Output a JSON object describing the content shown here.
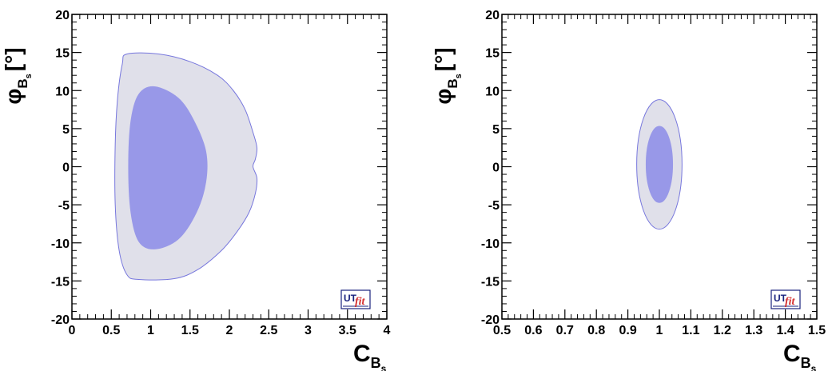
{
  "chart_data": [
    {
      "type": "contour",
      "xlabel": {
        "main": "C",
        "sub": "B",
        "subsub": "s"
      },
      "ylabel": {
        "main": "φ",
        "sub": "B",
        "subsub": "s",
        "unit": "[°]"
      },
      "xlim": [
        0,
        4
      ],
      "ylim": [
        -20,
        20
      ],
      "xticks": [
        0,
        0.5,
        1,
        1.5,
        2,
        2.5,
        3,
        3.5,
        4
      ],
      "xtick_labels": [
        "0",
        "0.5",
        "1",
        "1.5",
        "2",
        "2.5",
        "3",
        "3.5",
        "4"
      ],
      "yticks": [
        -20,
        -15,
        -10,
        -5,
        0,
        5,
        10,
        15,
        20
      ],
      "ytick_labels": [
        "-20",
        "-15",
        "-10",
        "-5",
        "0",
        "5",
        "10",
        "15",
        "20"
      ],
      "contours": [
        {
          "level": "outer",
          "fill": "#e0e0ea",
          "stroke": "#7777dd",
          "points": [
            [
              0.7,
              14.8
            ],
            [
              1.1,
              14.8
            ],
            [
              1.5,
              13.8
            ],
            [
              1.85,
              12.0
            ],
            [
              2.05,
              10.0
            ],
            [
              2.2,
              7.5
            ],
            [
              2.3,
              4.5
            ],
            [
              2.35,
              2.5
            ],
            [
              2.33,
              1.0
            ],
            [
              2.3,
              0.0
            ],
            [
              2.35,
              -1.5
            ],
            [
              2.33,
              -3.5
            ],
            [
              2.25,
              -6.0
            ],
            [
              2.1,
              -8.5
            ],
            [
              1.9,
              -11.0
            ],
            [
              1.6,
              -13.5
            ],
            [
              1.3,
              -14.7
            ],
            [
              0.85,
              -14.8
            ],
            [
              0.7,
              -14.2
            ],
            [
              0.6,
              -11.0
            ],
            [
              0.55,
              -5.0
            ],
            [
              0.55,
              3.0
            ],
            [
              0.58,
              9.0
            ],
            [
              0.64,
              13.5
            ]
          ]
        },
        {
          "level": "inner",
          "fill": "#9898e8",
          "stroke": "#9898e8",
          "points": [
            [
              1.05,
              10.5
            ],
            [
              1.35,
              9.0
            ],
            [
              1.55,
              6.0
            ],
            [
              1.7,
              2.0
            ],
            [
              1.7,
              -2.0
            ],
            [
              1.58,
              -6.0
            ],
            [
              1.35,
              -9.5
            ],
            [
              1.05,
              -10.8
            ],
            [
              0.85,
              -9.8
            ],
            [
              0.75,
              -6.0
            ],
            [
              0.72,
              0.0
            ],
            [
              0.75,
              6.0
            ],
            [
              0.85,
              9.5
            ]
          ]
        }
      ],
      "logo": {
        "ut": "UT",
        "fit": "fit"
      }
    },
    {
      "type": "contour",
      "xlabel": {
        "main": "C",
        "sub": "B",
        "subsub": "s"
      },
      "ylabel": {
        "main": "φ",
        "sub": "B",
        "subsub": "s",
        "unit": "[°]"
      },
      "xlim": [
        0.5,
        1.5
      ],
      "ylim": [
        -20,
        20
      ],
      "xticks": [
        0.5,
        0.6,
        0.7,
        0.8,
        0.9,
        1,
        1.1,
        1.2,
        1.3,
        1.4,
        1.5
      ],
      "xtick_labels": [
        "0.5",
        "0.6",
        "0.7",
        "0.8",
        "0.9",
        "1",
        "1.1",
        "1.2",
        "1.3",
        "1.4",
        "1.5"
      ],
      "yticks": [
        -20,
        -15,
        -10,
        -5,
        0,
        5,
        10,
        15,
        20
      ],
      "ytick_labels": [
        "-20",
        "-15",
        "-10",
        "-5",
        "0",
        "5",
        "10",
        "15",
        "20"
      ],
      "contours": [
        {
          "level": "outer",
          "fill": "#e0e0ea",
          "stroke": "#7777dd",
          "ellipse": {
            "cx": 1.0,
            "cy": 0.3,
            "rx": 0.072,
            "ry": 8.5
          }
        },
        {
          "level": "inner",
          "fill": "#9898e8",
          "stroke": "#9898e8",
          "ellipse": {
            "cx": 1.0,
            "cy": 0.3,
            "rx": 0.042,
            "ry": 5.0
          }
        }
      ],
      "logo": {
        "ut": "UT",
        "fit": "fit"
      }
    }
  ]
}
